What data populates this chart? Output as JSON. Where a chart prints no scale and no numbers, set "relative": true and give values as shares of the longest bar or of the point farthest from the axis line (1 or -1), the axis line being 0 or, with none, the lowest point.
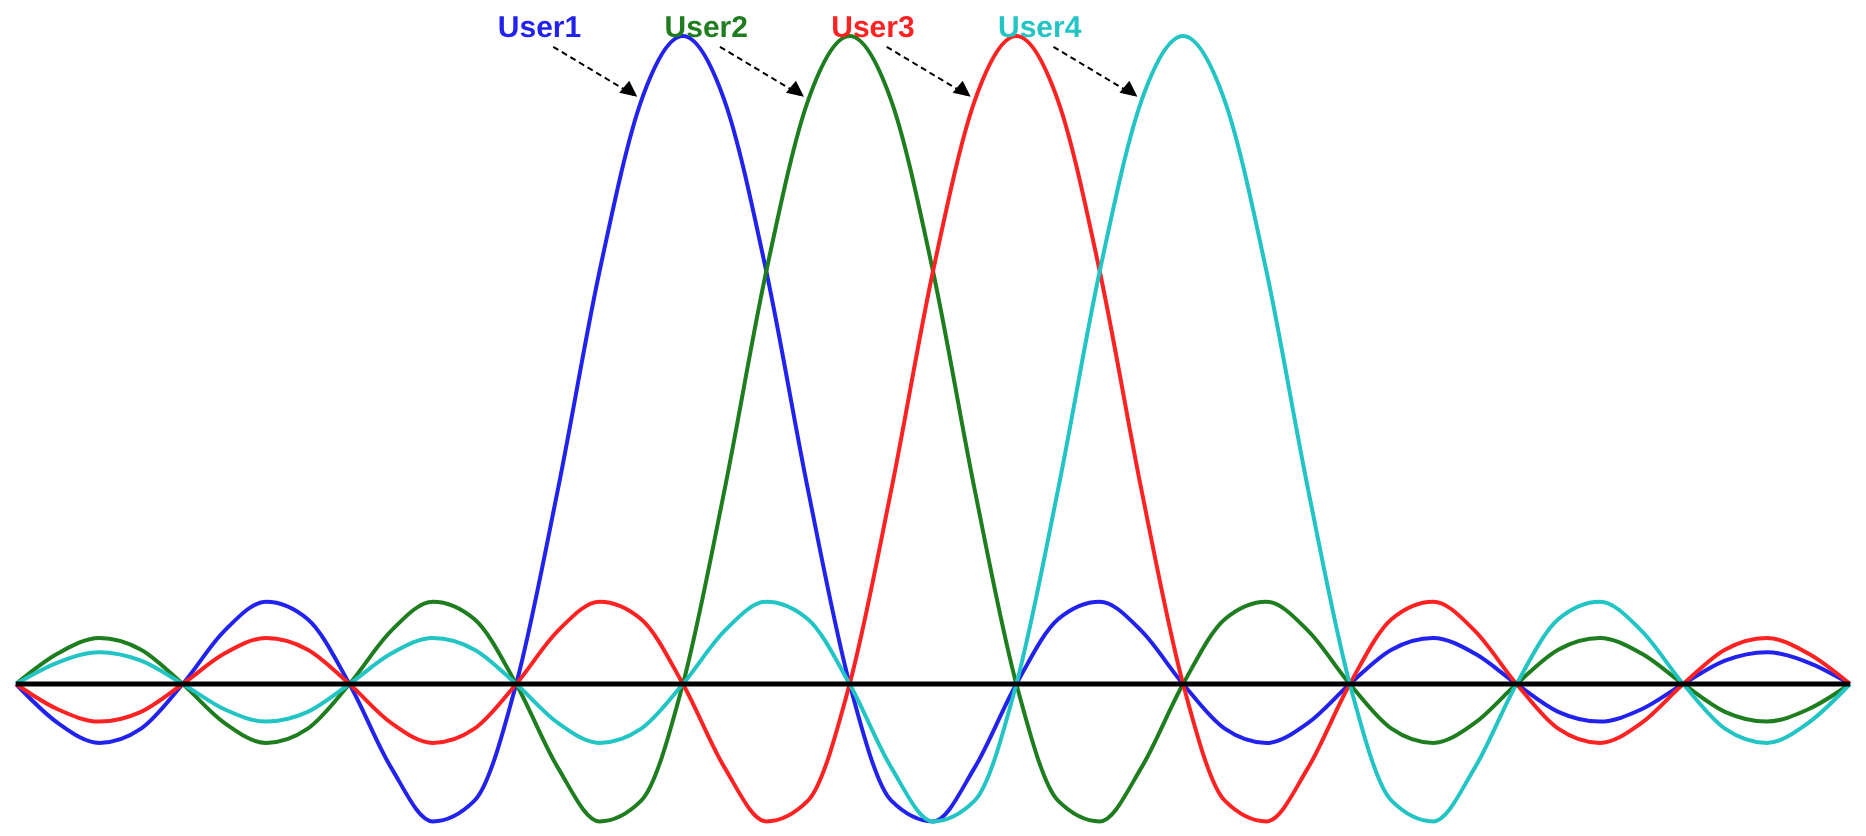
{
  "chart_data": {
    "type": "line",
    "relative": true,
    "categories": [
      null,
      null,
      null,
      null,
      null,
      null,
      null,
      null,
      null,
      null,
      null,
      null,
      null,
      null,
      null,
      null,
      null,
      null,
      null,
      null,
      null,
      null,
      null,
      null,
      null,
      null,
      null,
      null,
      null,
      null,
      null,
      null,
      null,
      null,
      null,
      null,
      null,
      null,
      null,
      null,
      null,
      null,
      null,
      null,
      null
    ],
    "series": [
      {
        "name": "User1",
        "color": "#2222ee",
        "values": [
          0,
          -0.06,
          -0.091,
          -0.069,
          0,
          0.082,
          0.127,
          0.1,
          0,
          -0.129,
          -0.212,
          -0.18,
          0,
          0.3,
          0.637,
          0.9,
          1,
          0.9,
          0.637,
          0.3,
          0,
          -0.18,
          -0.212,
          -0.129,
          0,
          0.1,
          0.127,
          0.082,
          0,
          -0.069,
          -0.091,
          -0.06,
          0,
          0.053,
          0.071,
          0.047,
          0,
          -0.043,
          -0.058,
          -0.039,
          0,
          0.036,
          0.049,
          0.033,
          0
        ]
      },
      {
        "name": "User2",
        "color": "#1e7d1e",
        "values": [
          0,
          0.047,
          0.071,
          0.053,
          0,
          -0.06,
          -0.091,
          -0.069,
          0,
          0.082,
          0.127,
          0.1,
          0,
          -0.129,
          -0.212,
          -0.18,
          0,
          0.3,
          0.637,
          0.9,
          1,
          0.9,
          0.637,
          0.3,
          0,
          -0.18,
          -0.212,
          -0.129,
          0,
          0.1,
          0.127,
          0.082,
          0,
          -0.069,
          -0.091,
          -0.06,
          0,
          0.053,
          0.071,
          0.047,
          0,
          -0.043,
          -0.058,
          -0.039,
          0
        ]
      },
      {
        "name": "User3",
        "color": "#ff2222",
        "values": [
          0,
          -0.039,
          -0.058,
          -0.043,
          0,
          0.047,
          0.071,
          0.053,
          0,
          -0.06,
          -0.091,
          -0.069,
          0,
          0.082,
          0.127,
          0.1,
          0,
          -0.129,
          -0.212,
          -0.18,
          0,
          0.3,
          0.637,
          0.9,
          1,
          0.9,
          0.637,
          0.3,
          0,
          -0.18,
          -0.212,
          -0.129,
          0,
          0.1,
          0.127,
          0.082,
          0,
          -0.069,
          -0.091,
          -0.06,
          0,
          0.053,
          0.071,
          0.047,
          0
        ]
      },
      {
        "name": "User4",
        "color": "#22c4c4",
        "values": [
          0,
          0.033,
          0.049,
          0.036,
          0,
          -0.039,
          -0.058,
          -0.043,
          0,
          0.047,
          0.071,
          0.053,
          0,
          -0.06,
          -0.091,
          -0.069,
          0,
          0.082,
          0.127,
          0.1,
          0,
          -0.129,
          -0.212,
          -0.18,
          0,
          0.3,
          0.637,
          0.9,
          1,
          0.9,
          0.637,
          0.3,
          0,
          -0.18,
          -0.212,
          -0.129,
          0,
          0.1,
          0.127,
          0.082,
          0,
          -0.069,
          -0.091,
          -0.06,
          0
        ]
      }
    ]
  }
}
